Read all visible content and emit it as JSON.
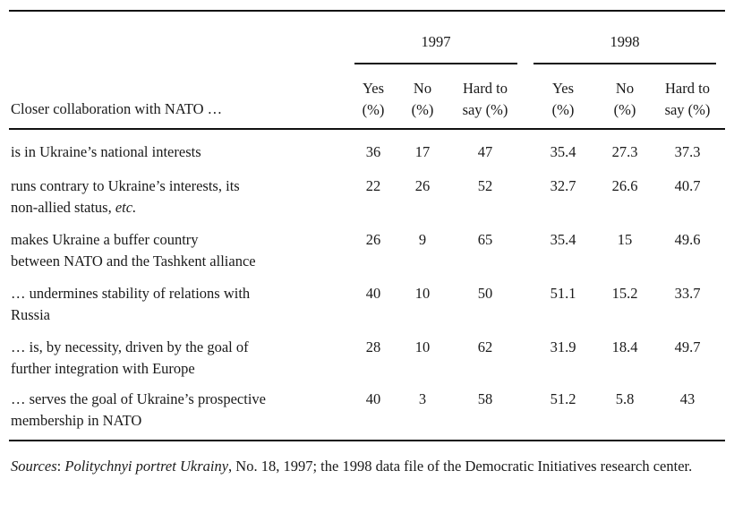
{
  "years": [
    "1997",
    "1998"
  ],
  "question_label": "Closer collaboration with NATO  …",
  "column_headers": [
    {
      "line1": "Yes",
      "line2": "(%)"
    },
    {
      "line1": "No",
      "line2": "(%)"
    },
    {
      "line1": "Hard to",
      "line2": "say (%)"
    },
    {
      "line1": "Yes",
      "line2": "(%)"
    },
    {
      "line1": "No",
      "line2": "(%)"
    },
    {
      "line1": "Hard to",
      "line2": "say (%)"
    }
  ],
  "rows": [
    {
      "line1": "is in Ukraine’s national interests",
      "line2": "",
      "line2_italic": "",
      "values": [
        "36",
        "17",
        "47",
        "35.4",
        "27.3",
        "37.3"
      ]
    },
    {
      "line1": "runs contrary to Ukraine’s interests, its",
      "line2": "non-allied status, ",
      "line2_italic": "etc.",
      "values": [
        "22",
        "26",
        "52",
        "32.7",
        "26.6",
        "40.7"
      ]
    },
    {
      "line1": "makes Ukraine a buffer country",
      "line2": "between NATO and the Tashkent alliance",
      "line2_italic": "",
      "values": [
        "26",
        "9",
        "65",
        "35.4",
        "15",
        "49.6"
      ]
    },
    {
      "line1": "… undermines stability of relations with",
      "line2": "Russia",
      "line2_italic": "",
      "values": [
        "40",
        "10",
        "50",
        "51.1",
        "15.2",
        "33.7"
      ]
    },
    {
      "line1": "… is, by necessity, driven by the goal of",
      "line2": "further integration with Europe",
      "line2_italic": "",
      "values": [
        "28",
        "10",
        "62",
        "31.9",
        "18.4",
        "49.7"
      ]
    },
    {
      "line1": "… serves the goal of Ukraine’s prospective",
      "line2": "membership in NATO",
      "line2_italic": "",
      "values": [
        "40",
        "3",
        "58",
        "51.2",
        "5.8",
        "43"
      ]
    }
  ],
  "sources": {
    "label": "Sources",
    "sep": ": ",
    "publication": "Politychnyi portret Ukrainy",
    "rest": ", No. 18, 1997; the 1998 data file of the Democratic Initiatives research center."
  }
}
